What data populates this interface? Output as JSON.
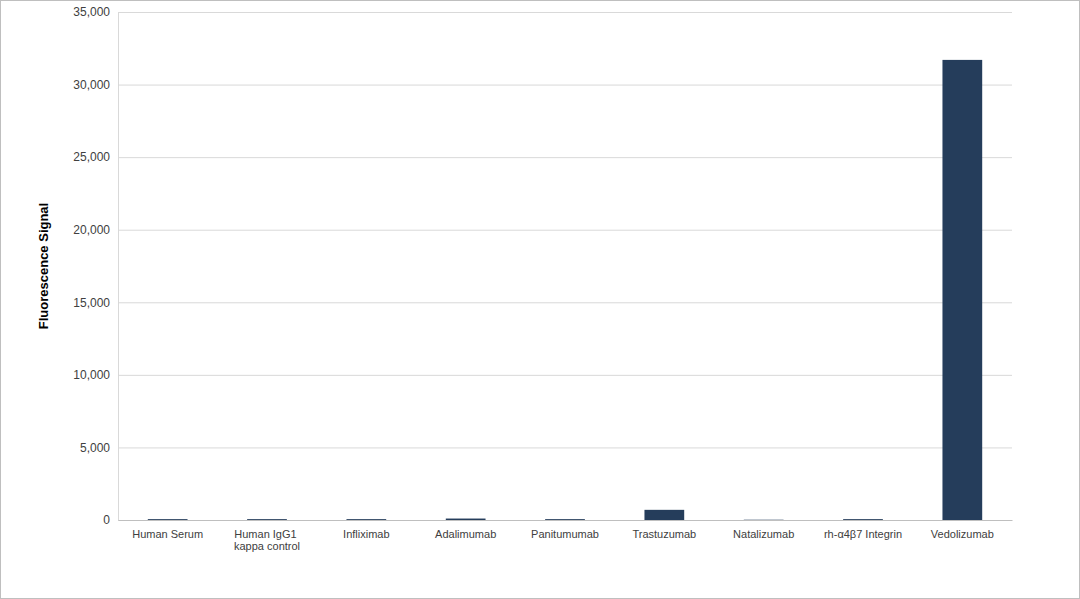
{
  "chart_data": {
    "type": "bar",
    "y_label": "Fluorescence Signal",
    "categories": [
      "Human Serum",
      "Human IgG1 kappa control",
      "Infliximab",
      "Adalimumab",
      "Panitumumab",
      "Trastuzumab",
      "Natalizumab",
      "rh-α4β7 Integrin",
      "Vedolizumab"
    ],
    "values": [
      60,
      60,
      60,
      100,
      60,
      700,
      20,
      60,
      31700
    ],
    "color": "#253d5b",
    "ylim": [
      0,
      35000
    ],
    "yticks": [
      0,
      {
        "value": 5000,
        "label": "5,000"
      },
      {
        "value": 10000,
        "label": "10,000"
      },
      {
        "value": 15000,
        "label": "15,000"
      },
      {
        "value": 20000,
        "label": "20,000"
      },
      {
        "value": 25000,
        "label": "25,000"
      },
      {
        "value": 30000,
        "label": "30,000"
      },
      {
        "value": 35000,
        "label": "35,000"
      }
    ],
    "grid": true
  }
}
